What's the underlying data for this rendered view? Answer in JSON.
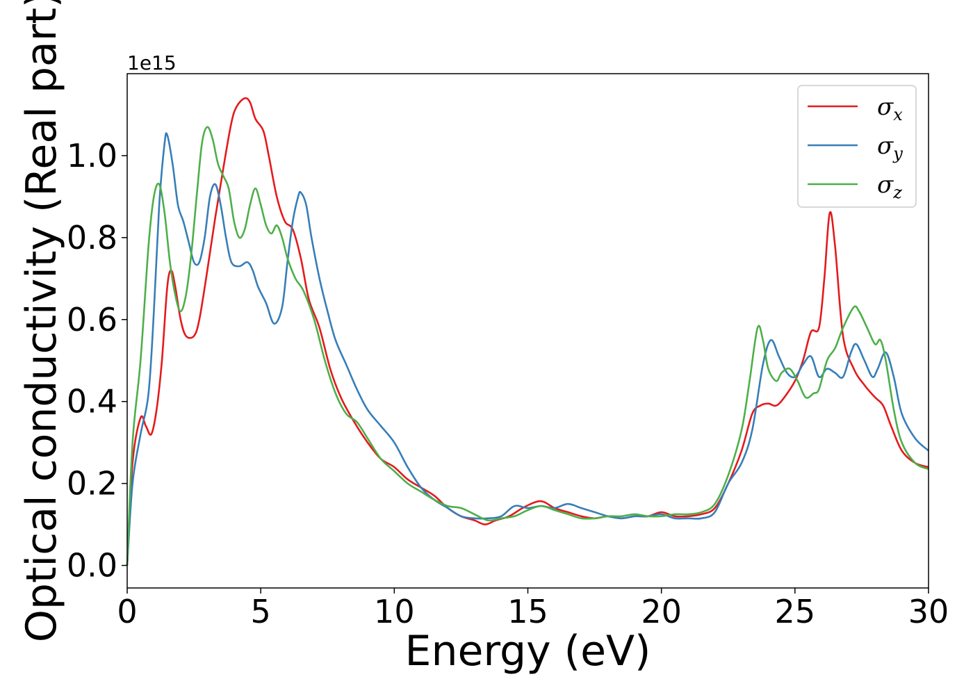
{
  "chart_data": {
    "type": "line",
    "xlabel": "Energy (eV)",
    "ylabel": "Optical conductivity (Real part)",
    "y_offset_label": "1e15",
    "xlim": [
      0,
      30
    ],
    "ylim": [
      -0.055,
      1.2
    ],
    "xticks": [
      0,
      5,
      10,
      15,
      20,
      25,
      30
    ],
    "yticks": [
      0.0,
      0.2,
      0.4,
      0.6,
      0.8,
      1.0
    ],
    "ytick_labels": [
      "0.0",
      "0.2",
      "0.4",
      "0.6",
      "0.8",
      "1.0"
    ],
    "grid": false,
    "legend_position": "top-right",
    "series": [
      {
        "name": "σx",
        "legend_base": "σ",
        "legend_sub": "x",
        "color": "#e41a1c",
        "points": [
          [
            0,
            0
          ],
          [
            0.2,
            0.25
          ],
          [
            0.5,
            0.36
          ],
          [
            0.7,
            0.34
          ],
          [
            0.9,
            0.32
          ],
          [
            1.1,
            0.38
          ],
          [
            1.3,
            0.5
          ],
          [
            1.5,
            0.68
          ],
          [
            1.65,
            0.72
          ],
          [
            1.8,
            0.68
          ],
          [
            2.0,
            0.6
          ],
          [
            2.2,
            0.56
          ],
          [
            2.5,
            0.56
          ],
          [
            2.7,
            0.6
          ],
          [
            3.0,
            0.72
          ],
          [
            3.3,
            0.85
          ],
          [
            3.6,
            0.97
          ],
          [
            3.9,
            1.08
          ],
          [
            4.1,
            1.12
          ],
          [
            4.4,
            1.14
          ],
          [
            4.6,
            1.13
          ],
          [
            4.8,
            1.09
          ],
          [
            5.1,
            1.06
          ],
          [
            5.3,
            1.0
          ],
          [
            5.6,
            0.9
          ],
          [
            5.9,
            0.84
          ],
          [
            6.2,
            0.82
          ],
          [
            6.5,
            0.75
          ],
          [
            6.8,
            0.65
          ],
          [
            7.2,
            0.58
          ],
          [
            7.6,
            0.48
          ],
          [
            8.0,
            0.41
          ],
          [
            8.5,
            0.35
          ],
          [
            9.0,
            0.3
          ],
          [
            9.5,
            0.26
          ],
          [
            10.0,
            0.24
          ],
          [
            10.5,
            0.21
          ],
          [
            11.0,
            0.19
          ],
          [
            11.5,
            0.17
          ],
          [
            12.0,
            0.14
          ],
          [
            12.5,
            0.12
          ],
          [
            13.0,
            0.11
          ],
          [
            13.4,
            0.1
          ],
          [
            13.8,
            0.11
          ],
          [
            14.3,
            0.12
          ],
          [
            14.8,
            0.14
          ],
          [
            15.3,
            0.155
          ],
          [
            15.6,
            0.155
          ],
          [
            16.0,
            0.14
          ],
          [
            16.5,
            0.13
          ],
          [
            17.0,
            0.12
          ],
          [
            17.5,
            0.115
          ],
          [
            18.0,
            0.12
          ],
          [
            18.5,
            0.115
          ],
          [
            19.0,
            0.12
          ],
          [
            19.5,
            0.12
          ],
          [
            20.0,
            0.13
          ],
          [
            20.5,
            0.12
          ],
          [
            21.0,
            0.12
          ],
          [
            21.5,
            0.125
          ],
          [
            22.0,
            0.14
          ],
          [
            22.5,
            0.2
          ],
          [
            23.0,
            0.28
          ],
          [
            23.4,
            0.37
          ],
          [
            23.7,
            0.39
          ],
          [
            24.0,
            0.395
          ],
          [
            24.3,
            0.39
          ],
          [
            24.6,
            0.41
          ],
          [
            25.0,
            0.45
          ],
          [
            25.3,
            0.5
          ],
          [
            25.6,
            0.57
          ],
          [
            25.9,
            0.58
          ],
          [
            26.1,
            0.7
          ],
          [
            26.3,
            0.86
          ],
          [
            26.5,
            0.78
          ],
          [
            26.8,
            0.56
          ],
          [
            27.2,
            0.48
          ],
          [
            27.6,
            0.44
          ],
          [
            28.0,
            0.41
          ],
          [
            28.3,
            0.39
          ],
          [
            28.6,
            0.34
          ],
          [
            29.0,
            0.28
          ],
          [
            29.5,
            0.25
          ],
          [
            30.0,
            0.24
          ]
        ]
      },
      {
        "name": "σy",
        "legend_base": "σ",
        "legend_sub": "y",
        "color": "#377eb8",
        "points": [
          [
            0,
            0
          ],
          [
            0.2,
            0.2
          ],
          [
            0.5,
            0.32
          ],
          [
            0.8,
            0.42
          ],
          [
            1.0,
            0.62
          ],
          [
            1.2,
            0.88
          ],
          [
            1.4,
            1.03
          ],
          [
            1.5,
            1.05
          ],
          [
            1.7,
            0.98
          ],
          [
            1.9,
            0.88
          ],
          [
            2.1,
            0.84
          ],
          [
            2.3,
            0.79
          ],
          [
            2.5,
            0.74
          ],
          [
            2.7,
            0.74
          ],
          [
            2.9,
            0.8
          ],
          [
            3.1,
            0.9
          ],
          [
            3.3,
            0.93
          ],
          [
            3.5,
            0.88
          ],
          [
            3.7,
            0.8
          ],
          [
            3.9,
            0.74
          ],
          [
            4.2,
            0.73
          ],
          [
            4.5,
            0.74
          ],
          [
            4.7,
            0.72
          ],
          [
            4.9,
            0.68
          ],
          [
            5.2,
            0.64
          ],
          [
            5.5,
            0.59
          ],
          [
            5.8,
            0.63
          ],
          [
            6.0,
            0.74
          ],
          [
            6.2,
            0.84
          ],
          [
            6.4,
            0.9
          ],
          [
            6.5,
            0.91
          ],
          [
            6.7,
            0.88
          ],
          [
            6.9,
            0.8
          ],
          [
            7.2,
            0.7
          ],
          [
            7.5,
            0.62
          ],
          [
            7.8,
            0.55
          ],
          [
            8.2,
            0.49
          ],
          [
            8.6,
            0.43
          ],
          [
            9.0,
            0.38
          ],
          [
            9.5,
            0.34
          ],
          [
            10.0,
            0.3
          ],
          [
            10.5,
            0.24
          ],
          [
            11.0,
            0.19
          ],
          [
            11.5,
            0.16
          ],
          [
            12.0,
            0.14
          ],
          [
            12.5,
            0.12
          ],
          [
            13.0,
            0.115
          ],
          [
            13.5,
            0.115
          ],
          [
            14.0,
            0.12
          ],
          [
            14.5,
            0.145
          ],
          [
            15.0,
            0.14
          ],
          [
            15.5,
            0.145
          ],
          [
            16.0,
            0.14
          ],
          [
            16.5,
            0.15
          ],
          [
            17.0,
            0.14
          ],
          [
            17.5,
            0.13
          ],
          [
            18.0,
            0.12
          ],
          [
            18.5,
            0.115
          ],
          [
            19.0,
            0.12
          ],
          [
            19.5,
            0.12
          ],
          [
            20.0,
            0.125
          ],
          [
            20.5,
            0.115
          ],
          [
            21.0,
            0.115
          ],
          [
            21.5,
            0.115
          ],
          [
            22.0,
            0.13
          ],
          [
            22.5,
            0.2
          ],
          [
            23.0,
            0.25
          ],
          [
            23.4,
            0.33
          ],
          [
            23.8,
            0.49
          ],
          [
            24.1,
            0.55
          ],
          [
            24.4,
            0.51
          ],
          [
            24.7,
            0.47
          ],
          [
            25.0,
            0.46
          ],
          [
            25.3,
            0.49
          ],
          [
            25.6,
            0.51
          ],
          [
            25.9,
            0.46
          ],
          [
            26.2,
            0.48
          ],
          [
            26.5,
            0.47
          ],
          [
            26.8,
            0.46
          ],
          [
            27.1,
            0.52
          ],
          [
            27.3,
            0.54
          ],
          [
            27.6,
            0.5
          ],
          [
            27.9,
            0.46
          ],
          [
            28.1,
            0.48
          ],
          [
            28.4,
            0.52
          ],
          [
            28.7,
            0.46
          ],
          [
            29.0,
            0.37
          ],
          [
            29.5,
            0.31
          ],
          [
            30.0,
            0.28
          ]
        ]
      },
      {
        "name": "σz",
        "legend_base": "σ",
        "legend_sub": "z",
        "color": "#4daf4a",
        "points": [
          [
            0,
            0
          ],
          [
            0.2,
            0.3
          ],
          [
            0.5,
            0.5
          ],
          [
            0.8,
            0.78
          ],
          [
            1.0,
            0.9
          ],
          [
            1.2,
            0.93
          ],
          [
            1.4,
            0.86
          ],
          [
            1.6,
            0.74
          ],
          [
            1.8,
            0.66
          ],
          [
            2.0,
            0.62
          ],
          [
            2.2,
            0.66
          ],
          [
            2.4,
            0.76
          ],
          [
            2.6,
            0.9
          ],
          [
            2.8,
            1.03
          ],
          [
            3.0,
            1.07
          ],
          [
            3.2,
            1.04
          ],
          [
            3.4,
            0.98
          ],
          [
            3.6,
            0.95
          ],
          [
            3.8,
            0.92
          ],
          [
            4.0,
            0.84
          ],
          [
            4.2,
            0.8
          ],
          [
            4.4,
            0.82
          ],
          [
            4.6,
            0.88
          ],
          [
            4.8,
            0.92
          ],
          [
            5.0,
            0.88
          ],
          [
            5.2,
            0.83
          ],
          [
            5.4,
            0.81
          ],
          [
            5.6,
            0.83
          ],
          [
            5.8,
            0.8
          ],
          [
            6.0,
            0.75
          ],
          [
            6.3,
            0.7
          ],
          [
            6.6,
            0.67
          ],
          [
            7.0,
            0.6
          ],
          [
            7.4,
            0.5
          ],
          [
            7.8,
            0.42
          ],
          [
            8.2,
            0.37
          ],
          [
            8.6,
            0.35
          ],
          [
            9.0,
            0.31
          ],
          [
            9.5,
            0.26
          ],
          [
            10.0,
            0.23
          ],
          [
            10.5,
            0.2
          ],
          [
            11.0,
            0.18
          ],
          [
            11.5,
            0.16
          ],
          [
            12.0,
            0.145
          ],
          [
            12.5,
            0.14
          ],
          [
            13.0,
            0.125
          ],
          [
            13.5,
            0.11
          ],
          [
            14.0,
            0.115
          ],
          [
            14.5,
            0.12
          ],
          [
            15.0,
            0.135
          ],
          [
            15.5,
            0.145
          ],
          [
            16.0,
            0.135
          ],
          [
            16.5,
            0.125
          ],
          [
            17.0,
            0.115
          ],
          [
            17.5,
            0.115
          ],
          [
            18.0,
            0.12
          ],
          [
            18.5,
            0.12
          ],
          [
            19.0,
            0.125
          ],
          [
            19.5,
            0.12
          ],
          [
            20.0,
            0.12
          ],
          [
            20.5,
            0.125
          ],
          [
            21.0,
            0.125
          ],
          [
            21.5,
            0.13
          ],
          [
            22.0,
            0.15
          ],
          [
            22.5,
            0.22
          ],
          [
            23.0,
            0.33
          ],
          [
            23.3,
            0.45
          ],
          [
            23.6,
            0.58
          ],
          [
            23.8,
            0.55
          ],
          [
            24.0,
            0.48
          ],
          [
            24.3,
            0.45
          ],
          [
            24.5,
            0.47
          ],
          [
            24.8,
            0.48
          ],
          [
            25.1,
            0.45
          ],
          [
            25.4,
            0.41
          ],
          [
            25.7,
            0.42
          ],
          [
            25.9,
            0.43
          ],
          [
            26.2,
            0.5
          ],
          [
            26.5,
            0.53
          ],
          [
            26.8,
            0.58
          ],
          [
            27.2,
            0.63
          ],
          [
            27.4,
            0.62
          ],
          [
            27.7,
            0.58
          ],
          [
            28.0,
            0.54
          ],
          [
            28.2,
            0.55
          ],
          [
            28.4,
            0.5
          ],
          [
            28.7,
            0.38
          ],
          [
            29.0,
            0.3
          ],
          [
            29.5,
            0.25
          ],
          [
            30.0,
            0.235
          ]
        ]
      }
    ]
  }
}
